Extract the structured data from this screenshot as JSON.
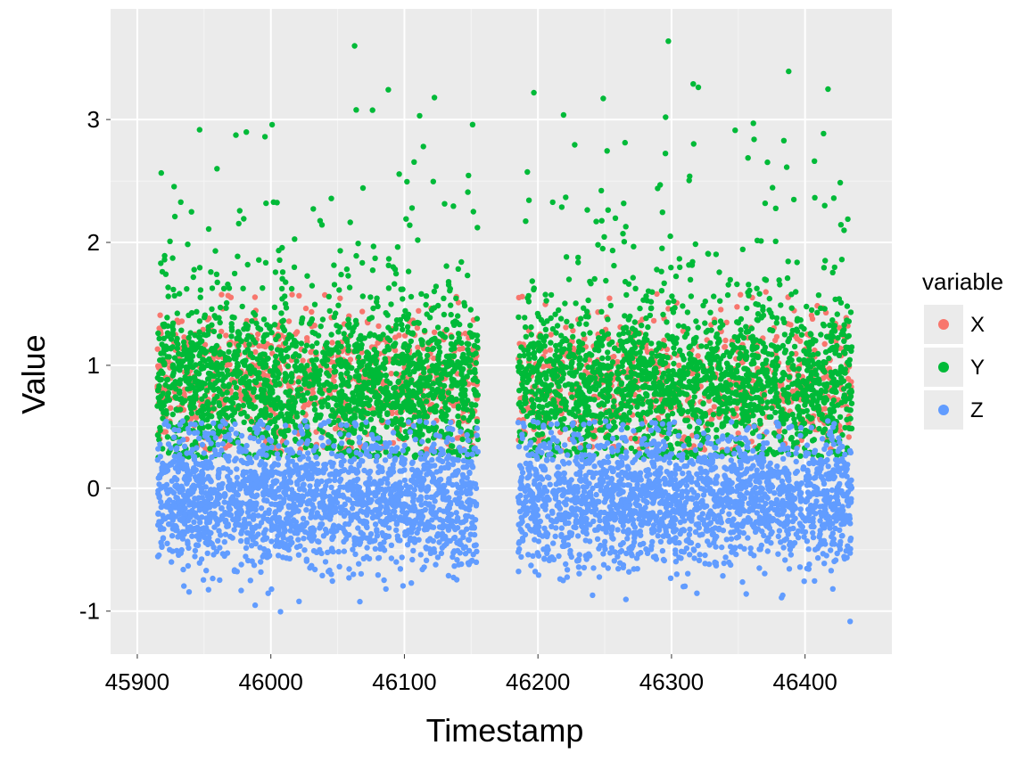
{
  "chart_data": {
    "type": "scatter",
    "title": "",
    "xlabel": "Timestamp",
    "ylabel": "Value",
    "xlim": [
      45880,
      46465
    ],
    "ylim": [
      -1.35,
      3.9
    ],
    "x_ticks": [
      45900,
      46000,
      46100,
      46200,
      46300,
      46400
    ],
    "y_ticks": [
      -1,
      0,
      1,
      2,
      3
    ],
    "x_tick_labels": [
      "45900",
      "46000",
      "46100",
      "46200",
      "46300",
      "46400"
    ],
    "y_tick_labels": [
      "-1",
      "0",
      "1",
      "2",
      "3"
    ],
    "grid": true,
    "background": "#EBEBEB",
    "legend": {
      "title": "variable",
      "position": "right",
      "entries": [
        "X",
        "Y",
        "Z"
      ]
    },
    "x_segments": [
      [
        45915,
        46155
      ],
      [
        46185,
        46435
      ]
    ],
    "series": [
      {
        "name": "X",
        "color": "#F8766D",
        "center": 0.85,
        "spread": 0.3,
        "min": 0.3,
        "max": 1.6
      },
      {
        "name": "Y",
        "color": "#00BA38",
        "center": 0.85,
        "spread": 0.33,
        "min": 0.25,
        "max": 3.65
      },
      {
        "name": "Z",
        "color": "#619CFF",
        "center": -0.1,
        "spread": 0.28,
        "min": -1.1,
        "max": 0.55
      }
    ]
  }
}
